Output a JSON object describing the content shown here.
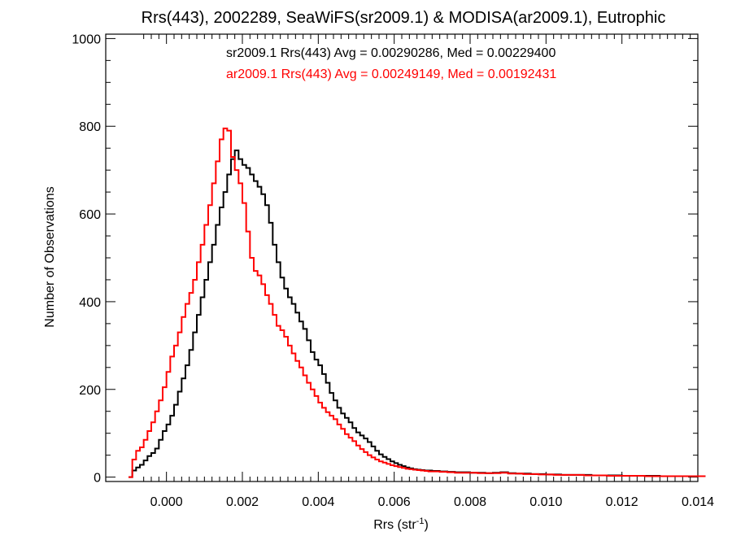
{
  "chart_data": {
    "type": "line",
    "title": "Rrs(443), 2002289, SeaWiFS(sr2009.1) & MODISA(ar2009.1), Eutrophic",
    "xlabel": "Rrs (str",
    "xlabel_sup": "-1",
    "xlabel_close": ")",
    "ylabel": "Number of Observations",
    "xlim": [
      -0.0016,
      0.014
    ],
    "ylim": [
      -10,
      1010
    ],
    "x_ticks": [
      0.0,
      0.002,
      0.004,
      0.006,
      0.008,
      0.01,
      0.012,
      0.014
    ],
    "x_tick_labels": [
      "0.000",
      "0.002",
      "0.004",
      "0.006",
      "0.008",
      "0.010",
      "0.012",
      "0.014"
    ],
    "y_ticks": [
      0,
      200,
      400,
      600,
      800,
      1000
    ],
    "y_tick_labels": [
      "0",
      "200",
      "400",
      "600",
      "800",
      "1000"
    ],
    "grid": false,
    "legend_position": "top-center",
    "series": [
      {
        "name": "sr2009.1 Rrs(443) Avg = 0.00290286, Med = 0.00229400",
        "color": "#000000",
        "points": [
          [
            -0.001,
            0
          ],
          [
            -0.0009,
            15
          ],
          [
            -0.0008,
            22
          ],
          [
            -0.0007,
            28
          ],
          [
            -0.0006,
            38
          ],
          [
            -0.0005,
            48
          ],
          [
            -0.0004,
            55
          ],
          [
            -0.0003,
            65
          ],
          [
            -0.0002,
            85
          ],
          [
            -0.0001,
            105
          ],
          [
            0.0,
            120
          ],
          [
            0.0001,
            140
          ],
          [
            0.0002,
            165
          ],
          [
            0.0003,
            195
          ],
          [
            0.0004,
            225
          ],
          [
            0.0005,
            255
          ],
          [
            0.0006,
            290
          ],
          [
            0.0007,
            330
          ],
          [
            0.0008,
            370
          ],
          [
            0.0009,
            410
          ],
          [
            0.001,
            450
          ],
          [
            0.0011,
            490
          ],
          [
            0.0012,
            530
          ],
          [
            0.0013,
            575
          ],
          [
            0.0014,
            615
          ],
          [
            0.0015,
            650
          ],
          [
            0.0016,
            690
          ],
          [
            0.0017,
            725
          ],
          [
            0.0018,
            745
          ],
          [
            0.0019,
            725
          ],
          [
            0.002,
            712
          ],
          [
            0.0021,
            705
          ],
          [
            0.0022,
            690
          ],
          [
            0.0023,
            675
          ],
          [
            0.0024,
            662
          ],
          [
            0.0025,
            645
          ],
          [
            0.0026,
            620
          ],
          [
            0.0027,
            580
          ],
          [
            0.0028,
            530
          ],
          [
            0.0029,
            490
          ],
          [
            0.003,
            455
          ],
          [
            0.0031,
            430
          ],
          [
            0.0032,
            410
          ],
          [
            0.0033,
            395
          ],
          [
            0.0034,
            375
          ],
          [
            0.0035,
            355
          ],
          [
            0.0036,
            338
          ],
          [
            0.0037,
            312
          ],
          [
            0.0038,
            285
          ],
          [
            0.0039,
            268
          ],
          [
            0.004,
            255
          ],
          [
            0.0041,
            235
          ],
          [
            0.0042,
            215
          ],
          [
            0.0043,
            192
          ],
          [
            0.0044,
            175
          ],
          [
            0.0045,
            158
          ],
          [
            0.0046,
            145
          ],
          [
            0.0047,
            135
          ],
          [
            0.0048,
            125
          ],
          [
            0.0049,
            112
          ],
          [
            0.005,
            102
          ],
          [
            0.0051,
            95
          ],
          [
            0.0052,
            88
          ],
          [
            0.0053,
            80
          ],
          [
            0.0054,
            70
          ],
          [
            0.0055,
            60
          ],
          [
            0.0056,
            52
          ],
          [
            0.0057,
            46
          ],
          [
            0.0058,
            41
          ],
          [
            0.0059,
            36
          ],
          [
            0.006,
            32
          ],
          [
            0.0061,
            28
          ],
          [
            0.0062,
            25
          ],
          [
            0.0063,
            22
          ],
          [
            0.0064,
            20
          ],
          [
            0.0065,
            18
          ],
          [
            0.0066,
            17
          ],
          [
            0.0067,
            16
          ],
          [
            0.0068,
            15
          ],
          [
            0.0069,
            15
          ],
          [
            0.007,
            14
          ],
          [
            0.0072,
            13
          ],
          [
            0.0074,
            12
          ],
          [
            0.0076,
            11
          ],
          [
            0.0078,
            11
          ],
          [
            0.008,
            10
          ],
          [
            0.0082,
            10
          ],
          [
            0.0084,
            9
          ],
          [
            0.0086,
            10
          ],
          [
            0.0088,
            11
          ],
          [
            0.009,
            9
          ],
          [
            0.0092,
            8
          ],
          [
            0.0094,
            8
          ],
          [
            0.0096,
            7
          ],
          [
            0.0098,
            7
          ],
          [
            0.01,
            6
          ],
          [
            0.0102,
            6
          ],
          [
            0.0104,
            5
          ],
          [
            0.0106,
            5
          ],
          [
            0.0108,
            5
          ],
          [
            0.011,
            5
          ],
          [
            0.0112,
            4
          ],
          [
            0.0114,
            4
          ],
          [
            0.0116,
            4
          ],
          [
            0.0118,
            4
          ],
          [
            0.012,
            3
          ],
          [
            0.0122,
            3
          ],
          [
            0.0124,
            3
          ],
          [
            0.0126,
            3
          ],
          [
            0.0128,
            3
          ],
          [
            0.013,
            2
          ],
          [
            0.0132,
            2
          ],
          [
            0.0134,
            2
          ],
          [
            0.0136,
            2
          ],
          [
            0.0138,
            2
          ],
          [
            0.014,
            2
          ]
        ]
      },
      {
        "name": "ar2009.1 Rrs(443) Avg = 0.00249149, Med = 0.00192431",
        "color": "#ff0000",
        "points": [
          [
            -0.001,
            0
          ],
          [
            -0.0009,
            40
          ],
          [
            -0.0008,
            60
          ],
          [
            -0.0007,
            68
          ],
          [
            -0.0006,
            85
          ],
          [
            -0.0005,
            105
          ],
          [
            -0.0004,
            125
          ],
          [
            -0.0003,
            150
          ],
          [
            -0.0002,
            175
          ],
          [
            -0.0001,
            205
          ],
          [
            0.0,
            240
          ],
          [
            0.0001,
            275
          ],
          [
            0.0002,
            300
          ],
          [
            0.0003,
            330
          ],
          [
            0.0004,
            365
          ],
          [
            0.0005,
            395
          ],
          [
            0.0006,
            420
          ],
          [
            0.0007,
            450
          ],
          [
            0.0008,
            490
          ],
          [
            0.0009,
            530
          ],
          [
            0.001,
            575
          ],
          [
            0.0011,
            620
          ],
          [
            0.0012,
            670
          ],
          [
            0.0013,
            720
          ],
          [
            0.0014,
            770
          ],
          [
            0.0015,
            795
          ],
          [
            0.0016,
            790
          ],
          [
            0.0017,
            730
          ],
          [
            0.0018,
            700
          ],
          [
            0.0019,
            670
          ],
          [
            0.002,
            625
          ],
          [
            0.0021,
            560
          ],
          [
            0.0022,
            500
          ],
          [
            0.0023,
            470
          ],
          [
            0.0024,
            460
          ],
          [
            0.0025,
            440
          ],
          [
            0.0026,
            415
          ],
          [
            0.0027,
            395
          ],
          [
            0.0028,
            370
          ],
          [
            0.0029,
            345
          ],
          [
            0.003,
            335
          ],
          [
            0.0031,
            320
          ],
          [
            0.0032,
            300
          ],
          [
            0.0033,
            282
          ],
          [
            0.0034,
            265
          ],
          [
            0.0035,
            250
          ],
          [
            0.0036,
            232
          ],
          [
            0.0037,
            215
          ],
          [
            0.0038,
            200
          ],
          [
            0.0039,
            185
          ],
          [
            0.004,
            170
          ],
          [
            0.0041,
            158
          ],
          [
            0.0042,
            148
          ],
          [
            0.0043,
            140
          ],
          [
            0.0044,
            132
          ],
          [
            0.0045,
            120
          ],
          [
            0.0046,
            110
          ],
          [
            0.0047,
            98
          ],
          [
            0.0048,
            90
          ],
          [
            0.0049,
            82
          ],
          [
            0.005,
            72
          ],
          [
            0.0051,
            64
          ],
          [
            0.0052,
            57
          ],
          [
            0.0053,
            50
          ],
          [
            0.0054,
            45
          ],
          [
            0.0055,
            40
          ],
          [
            0.0056,
            36
          ],
          [
            0.0057,
            33
          ],
          [
            0.0058,
            30
          ],
          [
            0.0059,
            27
          ],
          [
            0.006,
            25
          ],
          [
            0.0061,
            23
          ],
          [
            0.0062,
            21
          ],
          [
            0.0063,
            19
          ],
          [
            0.0064,
            18
          ],
          [
            0.0065,
            17
          ],
          [
            0.0066,
            16
          ],
          [
            0.0067,
            15
          ],
          [
            0.0068,
            14
          ],
          [
            0.0069,
            13
          ],
          [
            0.007,
            13
          ],
          [
            0.0072,
            12
          ],
          [
            0.0074,
            11
          ],
          [
            0.0076,
            10
          ],
          [
            0.0078,
            10
          ],
          [
            0.008,
            10
          ],
          [
            0.0082,
            9
          ],
          [
            0.0084,
            9
          ],
          [
            0.0086,
            9
          ],
          [
            0.0088,
            10
          ],
          [
            0.009,
            8
          ],
          [
            0.0092,
            8
          ],
          [
            0.0094,
            7
          ],
          [
            0.0096,
            7
          ],
          [
            0.0098,
            6
          ],
          [
            0.01,
            6
          ],
          [
            0.0102,
            5
          ],
          [
            0.0104,
            5
          ],
          [
            0.0106,
            5
          ],
          [
            0.0108,
            5
          ],
          [
            0.011,
            4
          ],
          [
            0.0112,
            4
          ],
          [
            0.0114,
            4
          ],
          [
            0.0116,
            3
          ],
          [
            0.0118,
            3
          ],
          [
            0.012,
            3
          ],
          [
            0.0122,
            3
          ],
          [
            0.0124,
            3
          ],
          [
            0.0126,
            2
          ],
          [
            0.0128,
            2
          ],
          [
            0.013,
            2
          ],
          [
            0.0132,
            2
          ],
          [
            0.0134,
            2
          ],
          [
            0.0136,
            2
          ],
          [
            0.0138,
            2
          ],
          [
            0.014,
            2
          ]
        ]
      }
    ]
  }
}
